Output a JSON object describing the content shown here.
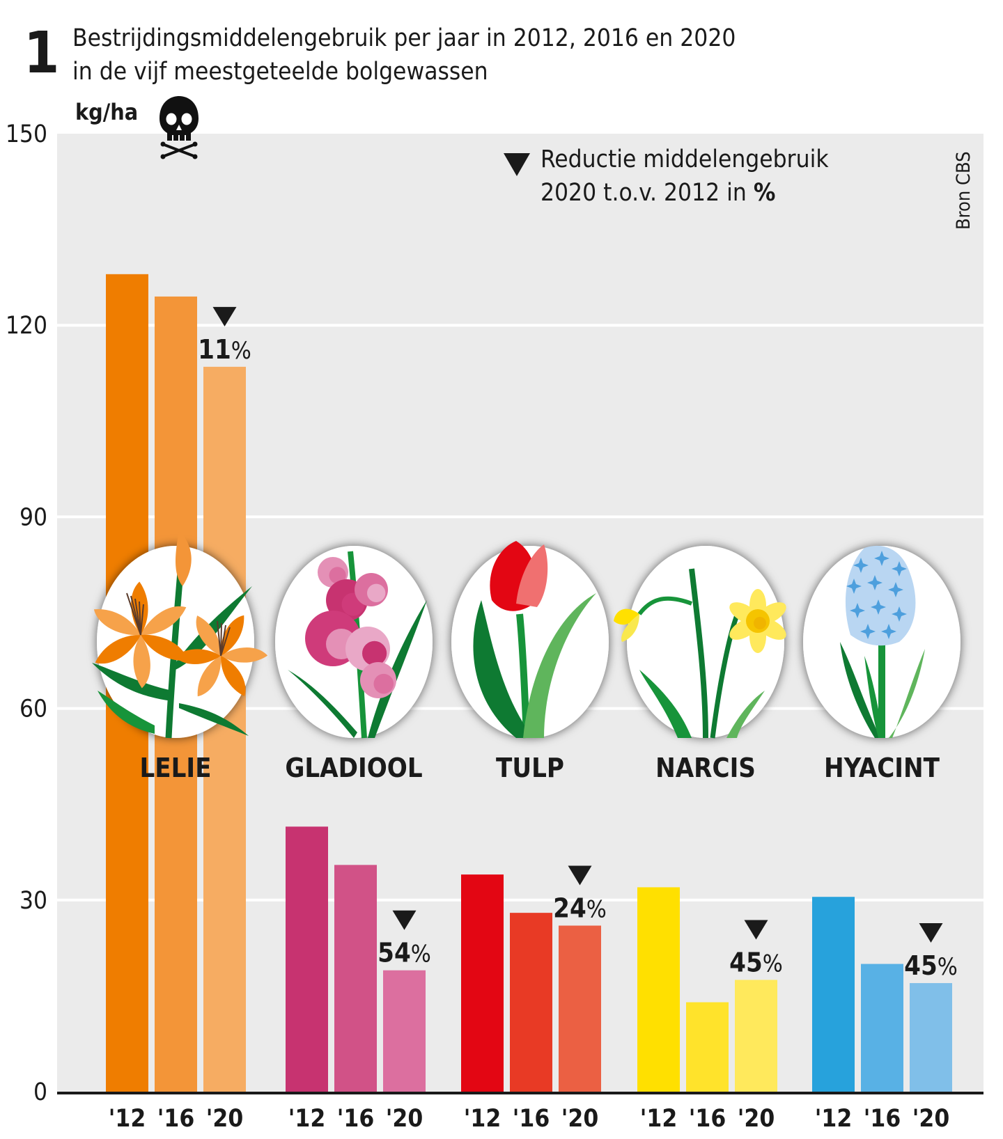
{
  "chart_data": {
    "type": "bar",
    "figure_number": "1",
    "title": "Bestrijdingsmiddelengebruik per jaar in 2012, 2016 en 2020",
    "subtitle": "in de vijf meestgeteelde bolgewassen",
    "ylabel": "kg/ha",
    "ylim": [
      0,
      150
    ],
    "yticks": [
      "0",
      "30",
      "60",
      "90",
      "120",
      "150"
    ],
    "x_labels": [
      "'12",
      "'16",
      "'20"
    ],
    "source": "Bron CBS",
    "legend": {
      "line1": "Reductie middelengebruik",
      "line2": "2020 t.o.v. 2012 in",
      "unit": "%"
    },
    "grid": true,
    "groups": [
      {
        "name": "LELIE",
        "values": [
          128,
          124.5,
          113.5
        ],
        "reduction": "11",
        "colors": [
          "#ef7d00",
          "#f39538",
          "#f6ac62"
        ]
      },
      {
        "name": "GLADIOOL",
        "values": [
          41.5,
          35.5,
          19
        ],
        "reduction": "54",
        "colors": [
          "#c73370",
          "#d15287",
          "#dc6f9f"
        ]
      },
      {
        "name": "TULP",
        "values": [
          34,
          28,
          26
        ],
        "reduction": "24",
        "colors": [
          "#e30613",
          "#e83a25",
          "#eb6043"
        ]
      },
      {
        "name": "NARCIS",
        "values": [
          32,
          14,
          17.5
        ],
        "reduction": "45",
        "colors": [
          "#ffe000",
          "#ffe32b",
          "#ffe95c"
        ]
      },
      {
        "name": "HYACINT",
        "values": [
          30.5,
          20,
          17
        ],
        "reduction": "45",
        "colors": [
          "#27a2dc",
          "#58b1e5",
          "#80bfe9"
        ]
      }
    ],
    "colors": {
      "panel": "#ebebeb",
      "grid": "#ffffff",
      "axis": "#1a1a1a",
      "text": "#1a1a1a"
    }
  }
}
